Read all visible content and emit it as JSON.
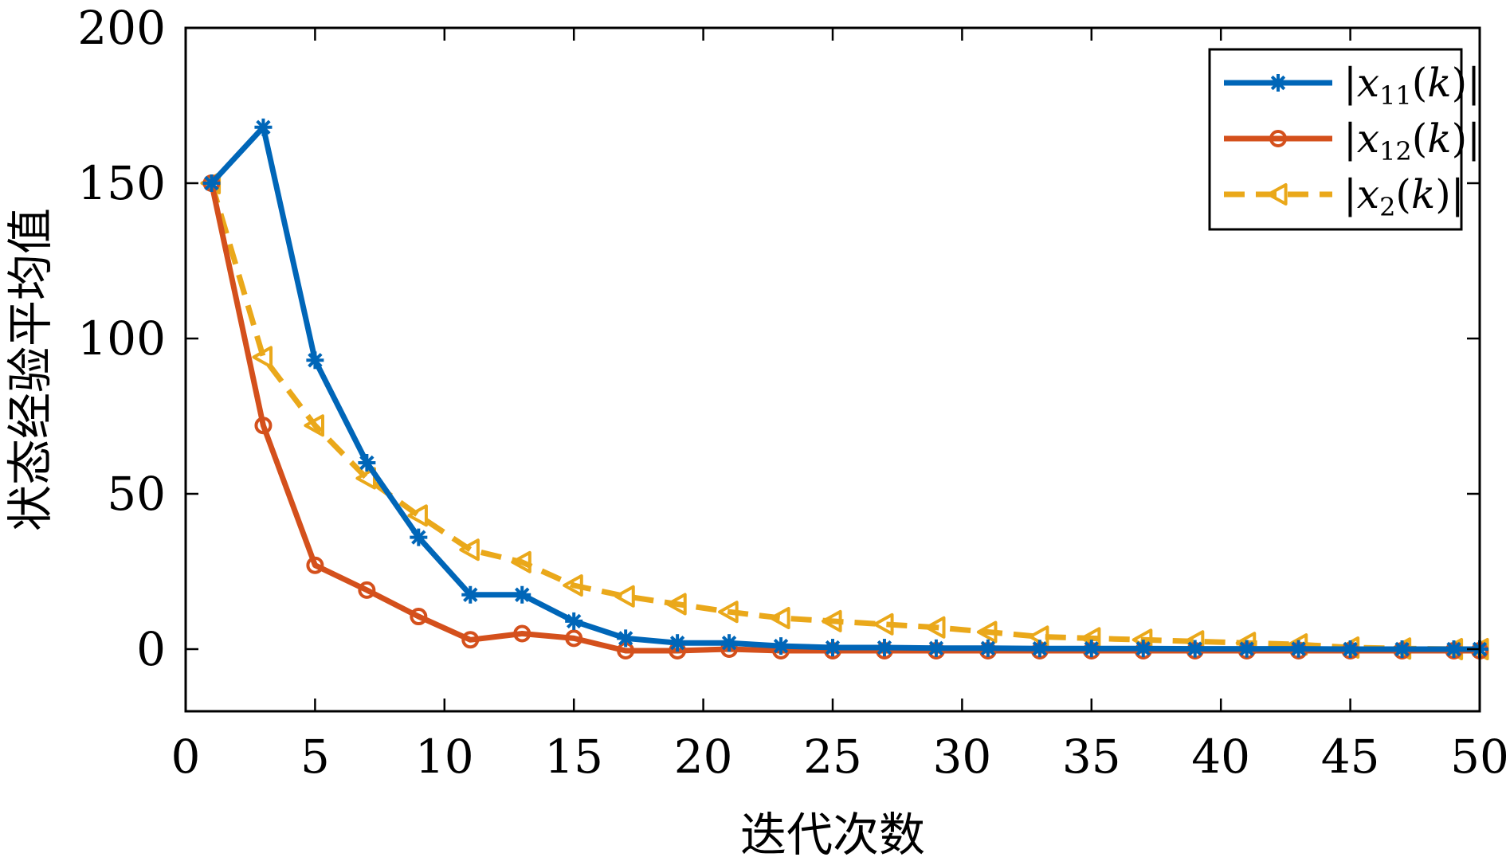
{
  "chart_data": {
    "type": "line",
    "xlabel": "迭代次数",
    "ylabel": "状态经验平均值",
    "xlim": [
      0,
      50
    ],
    "ylim": [
      -20,
      200
    ],
    "xticks": [
      0,
      5,
      10,
      15,
      20,
      25,
      30,
      35,
      40,
      45,
      50
    ],
    "yticks": [
      0,
      50,
      100,
      150,
      200
    ],
    "xtick_labels": [
      "0",
      "5",
      "10",
      "15",
      "20",
      "25",
      "30",
      "35",
      "40",
      "45",
      "50"
    ],
    "ytick_labels": [
      "0",
      "50",
      "100",
      "150",
      "200"
    ],
    "grid": false,
    "legend_position": "top-right",
    "x": [
      1,
      3,
      5,
      7,
      9,
      11,
      13,
      15,
      17,
      19,
      21,
      23,
      25,
      27,
      29,
      31,
      33,
      35,
      37,
      39,
      41,
      43,
      45,
      47,
      49,
      50
    ],
    "series": [
      {
        "name": "|x11(k)|",
        "color": "#0066b8",
        "line_style": "solid",
        "marker": "asterisk",
        "values": [
          150,
          168,
          93,
          60,
          36,
          17.5,
          17.5,
          9,
          3.5,
          2,
          2,
          1,
          0.5,
          0.5,
          0.3,
          0.3,
          0.2,
          0.2,
          0.2,
          0.1,
          0.1,
          0.1,
          0,
          0,
          0,
          0
        ]
      },
      {
        "name": "|x12(k)|",
        "color": "#d4501c",
        "line_style": "solid",
        "marker": "circle",
        "values": [
          150,
          72,
          27,
          19,
          10.5,
          3,
          5,
          3.5,
          -0.5,
          -0.5,
          0,
          -0.5,
          -0.5,
          -0.5,
          -0.5,
          -0.5,
          -0.5,
          -0.5,
          -0.5,
          -0.5,
          -0.5,
          -0.5,
          -0.5,
          -0.5,
          -0.5,
          -0.5
        ]
      },
      {
        "name": "|x2(k)|",
        "color": "#eaa81a",
        "line_style": "dashed",
        "marker": "triangle-left",
        "values": [
          150,
          94,
          72,
          55,
          43,
          32,
          28,
          20.5,
          17,
          14.5,
          12,
          10,
          9,
          8,
          7,
          5.5,
          4,
          3.5,
          3,
          2.5,
          2,
          1.5,
          0.5,
          0.2,
          0,
          0
        ]
      }
    ],
    "legend_entries": [
      {
        "base": "x",
        "sub": "11",
        "label": "|x11(k)|"
      },
      {
        "base": "x",
        "sub": "12",
        "label": "|x12(k)|"
      },
      {
        "base": "x",
        "sub": "2",
        "label": "|x2(k)|"
      }
    ]
  }
}
